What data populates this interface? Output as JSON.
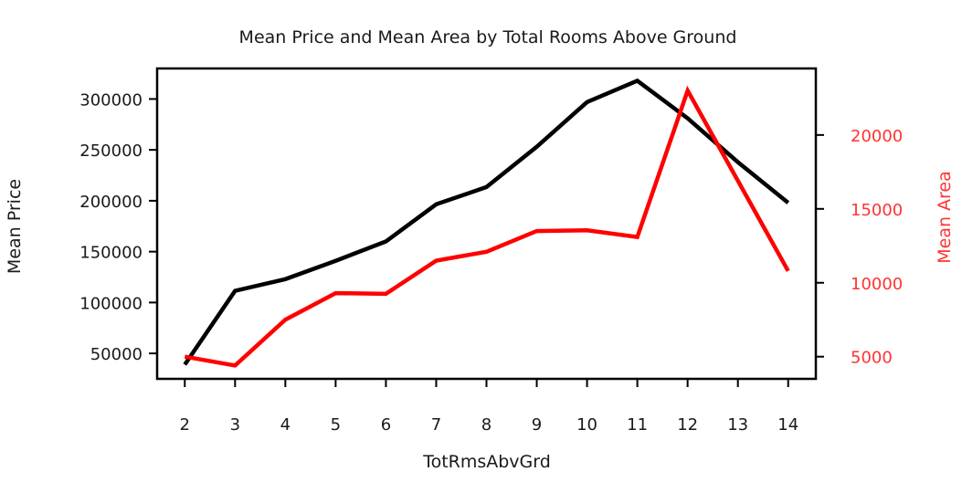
{
  "chart_data": {
    "type": "line",
    "title": "Mean Price and Mean Area by Total Rooms Above Ground",
    "xlabel": "TotRmsAbvGrd",
    "ylabel": "Mean Price",
    "y2label": "Mean Area",
    "x": [
      2,
      3,
      4,
      5,
      6,
      7,
      8,
      9,
      10,
      11,
      12,
      13,
      14
    ],
    "xlim": [
      1.45,
      14.55
    ],
    "ylim": [
      25000,
      330000
    ],
    "y2lim": [
      3500,
      24500
    ],
    "yticks": [
      50000,
      100000,
      150000,
      200000,
      250000,
      300000
    ],
    "y2ticks": [
      5000,
      10000,
      15000,
      20000
    ],
    "grid": false,
    "series": [
      {
        "axis": "left",
        "color": "#000000",
        "values": [
          39000,
          111500,
          123000,
          141000,
          160000,
          196500,
          213500,
          253000,
          297000,
          318000,
          281000,
          238000,
          198000
        ]
      },
      {
        "axis": "right",
        "color": "#ff0000",
        "values": [
          5000,
          4400,
          7500,
          9300,
          9250,
          11500,
          12100,
          13500,
          13550,
          13100,
          23000,
          16900,
          10800
        ]
      }
    ]
  }
}
